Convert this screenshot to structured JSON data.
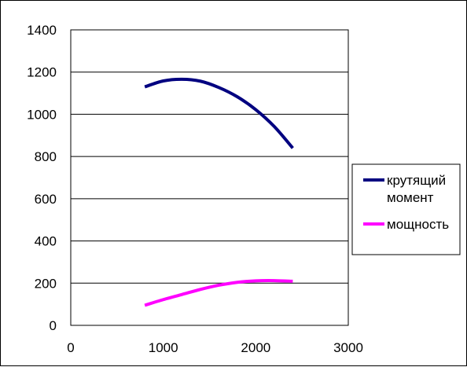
{
  "chart_data": {
    "type": "line",
    "title": "",
    "xlabel": "",
    "ylabel": "",
    "xlim": [
      0,
      3000
    ],
    "ylim": [
      0,
      1400
    ],
    "x_ticks": [
      "0",
      "1000",
      "2000",
      "3000"
    ],
    "y_ticks": [
      "0",
      "200",
      "400",
      "600",
      "800",
      "1000",
      "1200",
      "1400"
    ],
    "grid": "horizontal",
    "legend_position": "right",
    "series": [
      {
        "name": "крутящий момент",
        "name_lines": [
          "крутящий",
          "момент"
        ],
        "color": "#000080",
        "x": [
          800,
          1000,
          1200,
          1400,
          1600,
          1800,
          2000,
          2200,
          2400
        ],
        "y": [
          1130,
          1158,
          1166,
          1157,
          1127,
          1083,
          1022,
          942,
          840
        ]
      },
      {
        "name": "мощность",
        "name_lines": [
          "мощность"
        ],
        "color": "#ff00ff",
        "x": [
          800,
          1000,
          1200,
          1400,
          1600,
          1800,
          2000,
          2200,
          2400
        ],
        "y": [
          95,
          122,
          146,
          170,
          190,
          204,
          211,
          212,
          209
        ]
      }
    ]
  }
}
